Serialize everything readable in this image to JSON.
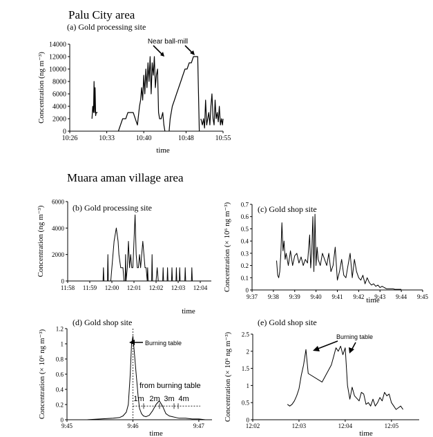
{
  "sections": {
    "palu": "Palu City area",
    "muara": "Muara aman village area"
  },
  "chart_data": [
    {
      "id": "a",
      "type": "line",
      "title": "(a) Gold processing site",
      "xlabel": "time",
      "ylabel": "Concentration (ng m⁻³)",
      "xticks": [
        "10:26",
        "10:33",
        "10:40",
        "10:48",
        "10:55"
      ],
      "xticks_minutes": [
        0,
        7,
        14,
        22,
        29
      ],
      "xlim": [
        0,
        29
      ],
      "ylim": [
        0,
        14000
      ],
      "yticks": [
        0,
        2000,
        4000,
        6000,
        8000,
        10000,
        12000,
        14000
      ],
      "annotations": [
        "Near ball-mill"
      ],
      "series": [
        {
          "x": [
            4.2,
            4.35,
            4.5,
            4.6,
            4.7,
            4.8,
            4.9,
            5.0,
            5.1,
            5.25
          ],
          "y": [
            2000,
            4000,
            3000,
            8000,
            3000,
            7000,
            2500,
            3000,
            3000,
            3000
          ]
        },
        {
          "x": [
            9.2,
            9.6,
            10.0,
            10.6,
            11.0,
            11.5,
            12.0,
            12.8,
            13.2,
            13.4,
            13.6,
            13.8,
            14.0,
            14.2,
            14.4,
            14.6,
            14.8,
            15.0,
            15.2,
            15.4,
            15.6,
            15.8,
            16.0,
            16.2,
            16.4,
            16.6,
            16.8,
            17.0,
            17.3,
            17.6,
            17.8,
            18.0
          ],
          "y": [
            0,
            1000,
            2000,
            2000,
            3000,
            3000,
            3000,
            1000,
            4000,
            5000,
            7000,
            5000,
            9000,
            6000,
            10000,
            7000,
            11000,
            8000,
            12000,
            6000,
            11000,
            9000,
            12000,
            7000,
            9000,
            10000,
            3000,
            2000,
            2000,
            3000,
            1000,
            0
          ]
        },
        {
          "x": [
            18.8,
            19.0,
            19.4,
            19.8,
            20.2,
            20.6,
            21.0,
            21.4,
            21.8,
            22.2,
            22.6,
            23.0,
            23.4,
            23.8,
            24.2,
            24.5
          ],
          "y": [
            0,
            2000,
            4000,
            5000,
            6000,
            7000,
            8000,
            9000,
            10000,
            10000,
            11000,
            11000,
            12000,
            12000,
            12000,
            0
          ]
        },
        {
          "x": [
            24.8,
            25.1,
            25.3,
            25.5,
            25.7,
            25.9,
            26.1,
            26.3,
            26.5,
            26.7,
            26.9,
            27.1,
            27.3,
            27.5,
            27.7,
            27.9,
            28.1,
            28.3,
            28.5,
            28.7,
            28.9,
            29.0
          ],
          "y": [
            2000,
            1000,
            2000,
            500,
            5000,
            1000,
            2000,
            3000,
            1000,
            4000,
            6000,
            2000,
            1000,
            5000,
            2000,
            3000,
            1500,
            4000,
            1000,
            2000,
            1000,
            2000
          ]
        }
      ]
    },
    {
      "id": "b",
      "type": "line",
      "title": "(b) Gold processing site",
      "xlabel": "time",
      "ylabel": "Concentration (ng m⁻³)",
      "xticks": [
        "11:58",
        "11:59",
        "12:00",
        "12:01",
        "12:02",
        "12:03",
        "12:04"
      ],
      "xticks_minutes": [
        0,
        1,
        2,
        3,
        4,
        5,
        6
      ],
      "xlim": [
        0,
        6.5
      ],
      "ylim": [
        0,
        6000
      ],
      "yticks": [
        0,
        2000,
        4000,
        6000
      ],
      "series": [
        {
          "x": [
            1.6,
            1.62,
            1.64,
            1.8,
            1.82,
            1.84,
            1.95,
            2.0,
            2.05,
            2.1,
            2.2,
            2.28,
            2.32,
            2.4,
            2.5,
            2.55,
            2.6,
            2.62,
            2.64,
            2.7,
            2.75,
            2.8,
            2.85,
            2.9,
            2.95,
            3.0,
            3.05,
            3.1,
            3.15,
            3.2,
            3.25,
            3.3,
            3.35,
            3.4,
            3.45,
            3.5,
            3.55,
            3.6,
            3.62,
            3.64,
            3.7,
            3.8,
            3.82,
            3.84,
            3.9,
            4.0,
            4.05,
            4.1,
            4.15,
            4.3,
            4.32,
            4.34,
            4.5,
            4.52,
            4.54,
            4.7,
            4.72,
            4.74,
            4.9,
            4.92,
            4.94,
            5.05,
            5.07,
            5.09,
            5.3,
            5.32,
            5.34,
            5.6,
            5.62,
            5.64,
            6.0
          ],
          "y": [
            0,
            1000,
            0,
            0,
            2000,
            0,
            0,
            1000,
            2000,
            3000,
            4000,
            3000,
            2000,
            1000,
            1000,
            0,
            0,
            2000,
            0,
            1000,
            3000,
            1000,
            2000,
            1000,
            1000,
            3000,
            5000,
            2000,
            1000,
            1000,
            2000,
            1000,
            2000,
            3000,
            2000,
            1000,
            1000,
            0,
            1000,
            0,
            0,
            0,
            2000,
            0,
            0,
            0,
            1000,
            0,
            0,
            0,
            1000,
            0,
            0,
            1000,
            0,
            0,
            1000,
            0,
            0,
            1000,
            0,
            0,
            1000,
            0,
            0,
            1000,
            0,
            0,
            1000,
            0,
            0
          ]
        }
      ]
    },
    {
      "id": "c",
      "type": "line",
      "title": "(c) Gold shop site",
      "xlabel": "time",
      "ylabel": "Concentration (× 10⁶ ng m⁻³)",
      "xticks": [
        "9:37",
        "9:38",
        "9:39",
        "9:40",
        "9:41",
        "9:42",
        "9:43",
        "9:44",
        "9:45"
      ],
      "xticks_minutes": [
        0,
        1,
        2,
        3,
        4,
        5,
        6,
        7,
        8
      ],
      "xlim": [
        0,
        8
      ],
      "ylim": [
        0,
        0.7
      ],
      "yticks": [
        0,
        0.1,
        0.2,
        0.3,
        0.4,
        0.5,
        0.6,
        0.7
      ],
      "series": [
        {
          "x": [
            1.15,
            1.2,
            1.25,
            1.3,
            1.35,
            1.4,
            1.45,
            1.5,
            1.55,
            1.6,
            1.7,
            1.8,
            1.9,
            2.0,
            2.1,
            2.2,
            2.3,
            2.4,
            2.5,
            2.6,
            2.7,
            2.75,
            2.8,
            2.85,
            2.9,
            2.95,
            3.0,
            3.05,
            3.1,
            3.2,
            3.3,
            3.4,
            3.5,
            3.6,
            3.7,
            3.8,
            3.9,
            4.0,
            4.1,
            4.2,
            4.3,
            4.4,
            4.5,
            4.6,
            4.7,
            4.8,
            4.9,
            5.0,
            5.1,
            5.2,
            5.3,
            5.4,
            5.5,
            5.6,
            5.7,
            5.8,
            5.9,
            6.0,
            6.1,
            6.2,
            6.3,
            6.4,
            6.5,
            6.6,
            6.7,
            6.8,
            7.0
          ],
          "y": [
            0.24,
            0.12,
            0.1,
            0.15,
            0.3,
            0.55,
            0.32,
            0.4,
            0.25,
            0.3,
            0.2,
            0.32,
            0.2,
            0.28,
            0.3,
            0.22,
            0.27,
            0.2,
            0.25,
            0.22,
            0.45,
            0.18,
            0.3,
            0.6,
            0.15,
            0.62,
            0.2,
            0.35,
            0.25,
            0.2,
            0.3,
            0.25,
            0.2,
            0.3,
            0.15,
            0.2,
            0.35,
            0.08,
            0.15,
            0.25,
            0.12,
            0.1,
            0.2,
            0.3,
            0.1,
            0.25,
            0.15,
            0.1,
            0.08,
            0.12,
            0.05,
            0.1,
            0.06,
            0.04,
            0.05,
            0.03,
            0.04,
            0.02,
            0.03,
            0.02,
            0.01,
            0.01,
            0.01,
            0.01,
            0.005,
            0.005,
            0.005
          ]
        }
      ]
    },
    {
      "id": "d",
      "type": "line",
      "title": "(d) Gold shop site",
      "xlabel": "time",
      "ylabel": "Concentration (× 10⁶ ng m⁻³)",
      "xticks": [
        "9:45",
        "9:46",
        "9:47"
      ],
      "xticks_minutes": [
        0,
        1,
        2
      ],
      "xlim": [
        0,
        2.2
      ],
      "ylim": [
        0,
        1.2
      ],
      "yticks": [
        0,
        0.2,
        0.4,
        0.6,
        0.8,
        1,
        1.2
      ],
      "annotations": [
        "Burning table",
        "from burning table",
        "1m",
        "2m",
        "3m",
        "4m"
      ],
      "series": [
        {
          "x": [
            0.05,
            0.3,
            0.5,
            0.7,
            0.8,
            0.85,
            0.9,
            0.93,
            0.96,
            0.98,
            1.0,
            1.02,
            1.05,
            1.08,
            1.1,
            1.13,
            1.16,
            1.2,
            1.25,
            1.3,
            1.35,
            1.4,
            1.45,
            1.5,
            1.55,
            1.6,
            1.65,
            1.7,
            1.8,
            1.9,
            2.0,
            2.1
          ],
          "y": [
            0.0,
            0.0,
            0.01,
            0.02,
            0.03,
            0.05,
            0.1,
            0.2,
            0.6,
            1.0,
            1.1,
            0.9,
            0.6,
            0.3,
            0.15,
            0.08,
            0.05,
            0.04,
            0.06,
            0.12,
            0.2,
            0.25,
            0.18,
            0.08,
            0.05,
            0.04,
            0.03,
            0.02,
            0.02,
            0.01,
            0.01,
            0.0
          ]
        }
      ]
    },
    {
      "id": "e",
      "type": "line",
      "title": "(e) Gold shop site",
      "xlabel": "time",
      "ylabel": "Concentration (× 10⁶ ng m⁻³)",
      "xticks": [
        "12:02",
        "12:03",
        "12:04",
        "12:05"
      ],
      "xticks_minutes": [
        0,
        1,
        2,
        3
      ],
      "xlim": [
        0,
        3.6
      ],
      "ylim": [
        0,
        2.5
      ],
      "yticks": [
        0,
        0.5,
        1,
        1.5,
        2,
        2.5
      ],
      "annotations": [
        "Burning table"
      ],
      "series": [
        {
          "x": [
            0.75,
            0.8,
            0.85,
            0.9,
            0.95,
            1.0,
            1.05,
            1.1,
            1.15,
            1.2,
            1.5,
            1.7,
            1.75,
            1.8,
            1.85,
            1.9,
            1.95,
            2.0,
            2.05,
            2.1,
            2.15,
            2.2,
            2.3,
            2.35,
            2.4,
            2.45,
            2.5,
            2.55,
            2.6,
            2.65,
            2.7,
            2.75,
            2.8,
            2.85,
            2.9,
            2.95,
            3.0,
            3.05,
            3.1,
            3.15,
            3.2,
            3.25
          ],
          "y": [
            0.45,
            0.4,
            0.45,
            0.55,
            0.7,
            0.9,
            1.3,
            1.6,
            2.05,
            1.35,
            1.1,
            1.6,
            1.85,
            2.1,
            2.0,
            2.15,
            1.9,
            2.1,
            1.0,
            0.6,
            0.95,
            0.7,
            0.55,
            0.8,
            0.75,
            0.45,
            0.5,
            0.4,
            0.6,
            0.4,
            0.5,
            0.65,
            0.55,
            0.8,
            0.7,
            0.75,
            0.5,
            0.4,
            0.3,
            0.35,
            0.4,
            0.3
          ]
        }
      ]
    }
  ]
}
